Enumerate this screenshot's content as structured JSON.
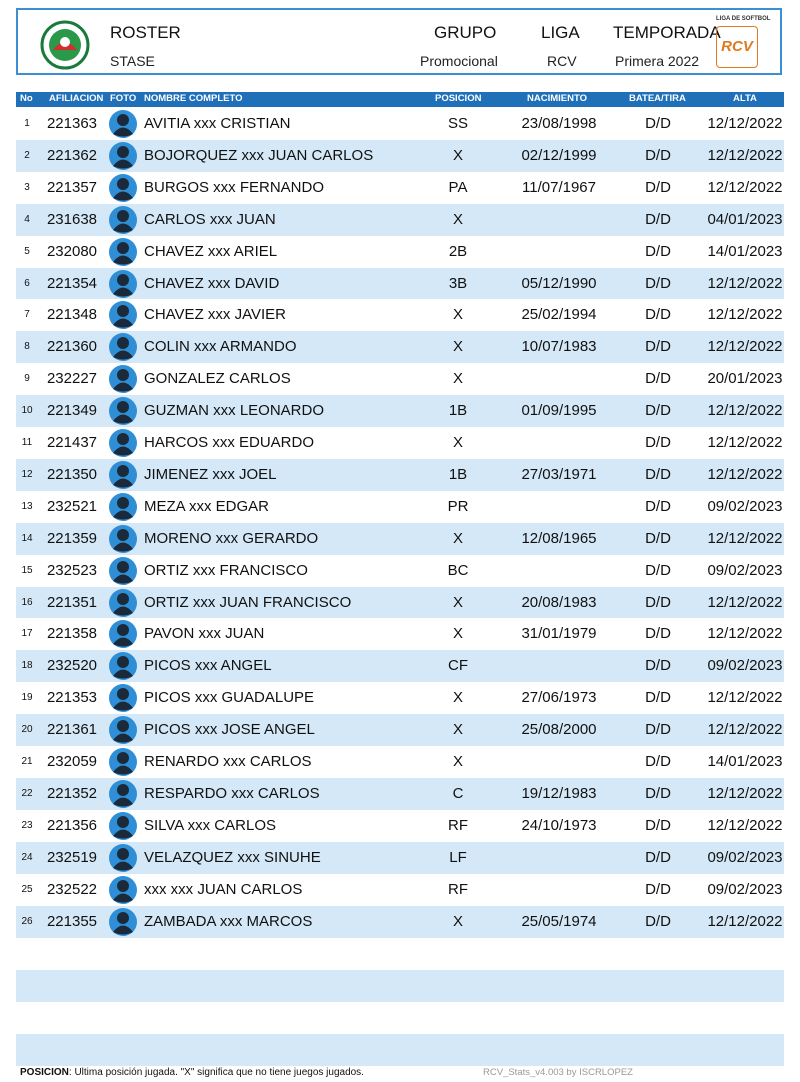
{
  "header": {
    "title": "ROSTER",
    "team": "STASE",
    "group_label": "GRUPO",
    "group": "Promocional",
    "league_label": "LIGA",
    "league": "RCV",
    "season_label": "TEMPORADA",
    "season": "Primera 2022",
    "logo_caption": "LIGA DE SOFTBOL",
    "logo_text": "RCV"
  },
  "table": {
    "columns": [
      "No",
      "AFILIACION",
      "FOTO",
      "NOMBRE COMPLETO",
      "POSICION",
      "NACIMIENTO",
      "BATEA/TIRA",
      "ALTA"
    ],
    "rows": [
      [
        1,
        221363,
        "AVITIA xxx CRISTIAN",
        "SS",
        "23/08/1998",
        "D/D",
        "12/12/2022"
      ],
      [
        2,
        221362,
        "BOJORQUEZ xxx JUAN CARLOS",
        "X",
        "02/12/1999",
        "D/D",
        "12/12/2022"
      ],
      [
        3,
        221357,
        "BURGOS xxx FERNANDO",
        "PA",
        "11/07/1967",
        "D/D",
        "12/12/2022"
      ],
      [
        4,
        231638,
        "CARLOS xxx JUAN",
        "X",
        null,
        "D/D",
        "04/01/2023"
      ],
      [
        5,
        232080,
        "CHAVEZ xxx ARIEL",
        "2B",
        null,
        "D/D",
        "14/01/2023"
      ],
      [
        6,
        221354,
        "CHAVEZ xxx DAVID",
        "3B",
        "05/12/1990",
        "D/D",
        "12/12/2022"
      ],
      [
        7,
        221348,
        "CHAVEZ xxx JAVIER",
        "X",
        "25/02/1994",
        "D/D",
        "12/12/2022"
      ],
      [
        8,
        221360,
        "COLIN xxx ARMANDO",
        "X",
        "10/07/1983",
        "D/D",
        "12/12/2022"
      ],
      [
        9,
        232227,
        "GONZALEZ CARLOS",
        "X",
        null,
        "D/D",
        "20/01/2023"
      ],
      [
        10,
        221349,
        "GUZMAN xxx LEONARDO",
        "1B",
        "01/09/1995",
        "D/D",
        "12/12/2022"
      ],
      [
        11,
        221437,
        "HARCOS xxx EDUARDO",
        "X",
        null,
        "D/D",
        "12/12/2022"
      ],
      [
        12,
        221350,
        "JIMENEZ xxx JOEL",
        "1B",
        "27/03/1971",
        "D/D",
        "12/12/2022"
      ],
      [
        13,
        232521,
        "MEZA xxx EDGAR",
        "PR",
        null,
        "D/D",
        "09/02/2023"
      ],
      [
        14,
        221359,
        "MORENO xxx GERARDO",
        "X",
        "12/08/1965",
        "D/D",
        "12/12/2022"
      ],
      [
        15,
        232523,
        "ORTIZ xxx FRANCISCO",
        "BC",
        null,
        "D/D",
        "09/02/2023"
      ],
      [
        16,
        221351,
        "ORTIZ xxx JUAN FRANCISCO",
        "X",
        "20/08/1983",
        "D/D",
        "12/12/2022"
      ],
      [
        17,
        221358,
        "PAVON xxx JUAN",
        "X",
        "31/01/1979",
        "D/D",
        "12/12/2022"
      ],
      [
        18,
        232520,
        "PICOS xxx ANGEL",
        "CF",
        null,
        "D/D",
        "09/02/2023"
      ],
      [
        19,
        221353,
        "PICOS xxx GUADALUPE",
        "X",
        "27/06/1973",
        "D/D",
        "12/12/2022"
      ],
      [
        20,
        221361,
        "PICOS xxx JOSE ANGEL",
        "X",
        "25/08/2000",
        "D/D",
        "12/12/2022"
      ],
      [
        21,
        232059,
        "RENARDO xxx CARLOS",
        "X",
        null,
        "D/D",
        "14/01/2023"
      ],
      [
        22,
        221352,
        "RESPARDO xxx CARLOS",
        "C",
        "19/12/1983",
        "D/D",
        "12/12/2022"
      ],
      [
        23,
        221356,
        "SILVA xxx CARLOS",
        "RF",
        "24/10/1973",
        "D/D",
        "12/12/2022"
      ],
      [
        24,
        232519,
        "VELAZQUEZ xxx SINUHE",
        "LF",
        null,
        "D/D",
        "09/02/2023"
      ],
      [
        25,
        232522,
        "xxx xxx JUAN CARLOS",
        "RF",
        null,
        "D/D",
        "09/02/2023"
      ],
      [
        26,
        221355,
        "ZAMBADA xxx MARCOS",
        "X",
        "25/05/1974",
        "D/D",
        "12/12/2022"
      ]
    ]
  },
  "footer": {
    "note_label": "POSICION",
    "note": ": Ultima posición jugada. \"X\" significa que no tiene juegos jugados.",
    "credit": "RCV_Stats_v4.003 by ISCRLOPEZ"
  }
}
